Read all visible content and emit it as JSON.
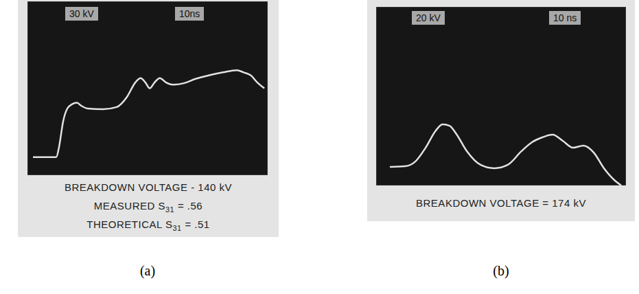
{
  "chart_data": [
    {
      "type": "line",
      "panel_label": "(a)",
      "scale_labels": {
        "y": "30 kV",
        "x": "10ns"
      },
      "caption": [
        "BREAKDOWN VOLTAGE - 140 kV",
        "MEASURED S31 = .56",
        "THEORETICAL S31 = .51"
      ],
      "x": [
        2.3,
        12,
        13.1,
        14.9,
        16.6,
        18.6,
        20.6,
        22.3,
        25.1,
        31.4,
        37.1,
        41.4,
        44.9,
        47.1,
        49.1,
        50.9,
        52.9,
        55.1,
        57.7,
        60.6,
        65.1,
        70,
        75.7,
        81.4,
        87.1,
        90,
        92.9,
        95.7,
        98.6
      ],
      "values": [
        25,
        25,
        38,
        75,
        92,
        98,
        100,
        96,
        92,
        91,
        94,
        108,
        128,
        134,
        128,
        120,
        128,
        134,
        128,
        125,
        127,
        133,
        138,
        142,
        145,
        142,
        138,
        128,
        120
      ],
      "xlim": [
        0,
        100
      ],
      "ylim": [
        0,
        240
      ],
      "xticks": [
        0,
        10,
        20,
        30,
        40,
        50,
        60,
        70,
        80,
        90,
        100
      ],
      "yticks": [
        0,
        30,
        60,
        90,
        120,
        150,
        180,
        210,
        240
      ],
      "grid": true,
      "tick_labels": false,
      "color": "#e2e2e2"
    },
    {
      "type": "line",
      "panel_label": "(b)",
      "scale_labels": {
        "y": "20 kV",
        "x": "10 ns"
      },
      "caption": [
        "BREAKDOWN VOLTAGE = 174 kV"
      ],
      "x": [
        5.5,
        11.5,
        15.7,
        19.8,
        23.9,
        26.6,
        29.4,
        32.1,
        36.3,
        41.8,
        47.3,
        52.7,
        58.2,
        62.4,
        66.5,
        70.6,
        74.7,
        78.8,
        83,
        87.1,
        91.2,
        95.3,
        98.1
      ],
      "values": [
        16.6,
        17.2,
        21.5,
        33.8,
        49.2,
        54.8,
        53.5,
        46.2,
        30.8,
        18.5,
        15.4,
        18.5,
        30.8,
        38.8,
        43.1,
        45.5,
        40,
        33.8,
        35.7,
        29.5,
        15.4,
        4.9,
        0
      ],
      "xlim": [
        0,
        100
      ],
      "ylim": [
        0,
        160
      ],
      "xticks": [
        0,
        10,
        20,
        30,
        40,
        50,
        60,
        70,
        80,
        90,
        100
      ],
      "yticks": [
        0,
        20,
        40,
        60,
        80,
        100,
        120,
        140,
        160
      ],
      "grid": true,
      "tick_labels": false,
      "color": "#e2e2e2"
    }
  ]
}
